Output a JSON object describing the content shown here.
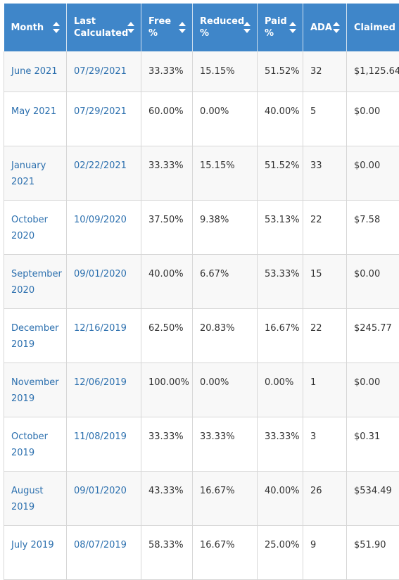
{
  "table": {
    "columns": [
      {
        "label": "Month",
        "sortable": true
      },
      {
        "label": "Last Calculated",
        "sortable": true
      },
      {
        "label": "Free %",
        "sortable": true
      },
      {
        "label": "Reduced %",
        "sortable": true
      },
      {
        "label": "Paid %",
        "sortable": true
      },
      {
        "label": "ADA",
        "sortable": true
      },
      {
        "label": "Claimed",
        "sortable": false
      }
    ],
    "rows": [
      {
        "month": "June 2021",
        "last_calculated": "07/29/2021",
        "free": "33.33%",
        "reduced": "15.15%",
        "paid": "51.52%",
        "ada": "32",
        "claimed": "$1,125.64"
      },
      {
        "month": "May 2021",
        "last_calculated": "07/29/2021",
        "free": "60.00%",
        "reduced": "0.00%",
        "paid": "40.00%",
        "ada": "5",
        "claimed": "$0.00"
      },
      {
        "month": "January 2021",
        "last_calculated": "02/22/2021",
        "free": "33.33%",
        "reduced": "15.15%",
        "paid": "51.52%",
        "ada": "33",
        "claimed": "$0.00"
      },
      {
        "month": "October 2020",
        "last_calculated": "10/09/2020",
        "free": "37.50%",
        "reduced": "9.38%",
        "paid": "53.13%",
        "ada": "22",
        "claimed": "$7.58"
      },
      {
        "month": "September 2020",
        "last_calculated": "09/01/2020",
        "free": "40.00%",
        "reduced": "6.67%",
        "paid": "53.33%",
        "ada": "15",
        "claimed": "$0.00"
      },
      {
        "month": "December 2019",
        "last_calculated": "12/16/2019",
        "free": "62.50%",
        "reduced": "20.83%",
        "paid": "16.67%",
        "ada": "22",
        "claimed": "$245.77"
      },
      {
        "month": "November 2019",
        "last_calculated": "12/06/2019",
        "free": "100.00%",
        "reduced": "0.00%",
        "paid": "0.00%",
        "ada": "1",
        "claimed": "$0.00"
      },
      {
        "month": "October 2019",
        "last_calculated": "11/08/2019",
        "free": "33.33%",
        "reduced": "33.33%",
        "paid": "33.33%",
        "ada": "3",
        "claimed": "$0.31"
      },
      {
        "month": "August 2019",
        "last_calculated": "09/01/2020",
        "free": "43.33%",
        "reduced": "16.67%",
        "paid": "40.00%",
        "ada": "26",
        "claimed": "$534.49"
      },
      {
        "month": "July 2019",
        "last_calculated": "08/07/2019",
        "free": "58.33%",
        "reduced": "16.67%",
        "paid": "25.00%",
        "ada": "9",
        "claimed": "$51.90"
      }
    ]
  },
  "colors": {
    "header_bg": "#3f86c9",
    "link": "#2b6fae",
    "row_stripe": "#f8f8f8"
  },
  "icons": {
    "sort": "sort-icon"
  }
}
